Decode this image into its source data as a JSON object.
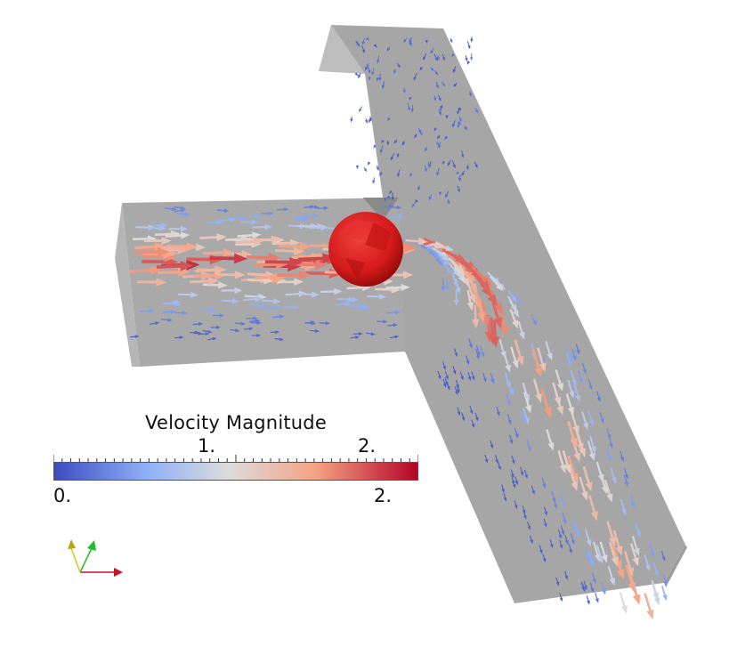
{
  "legend": {
    "title": "Velocity Magnitude",
    "tick_labels_top": [
      {
        "text": "1.",
        "value": 1.0
      },
      {
        "text": "2.",
        "value": 2.0
      }
    ],
    "tick_labels_bottom": [
      {
        "text": "0.",
        "value": 0.0
      },
      {
        "text": "2.",
        "value": 2.0
      }
    ],
    "range": [
      0.0,
      2.22
    ],
    "colormap": [
      "#3b4cc0",
      "#8daff7",
      "#dddcdc",
      "#f5a284",
      "#b40426"
    ]
  },
  "colors": {
    "geometry": "#a9a9a9",
    "sphere": "#d7191c",
    "axis_x": "#c0152a",
    "axis_y": "#1fbf1f",
    "axis_z": "#d6c81e"
  }
}
